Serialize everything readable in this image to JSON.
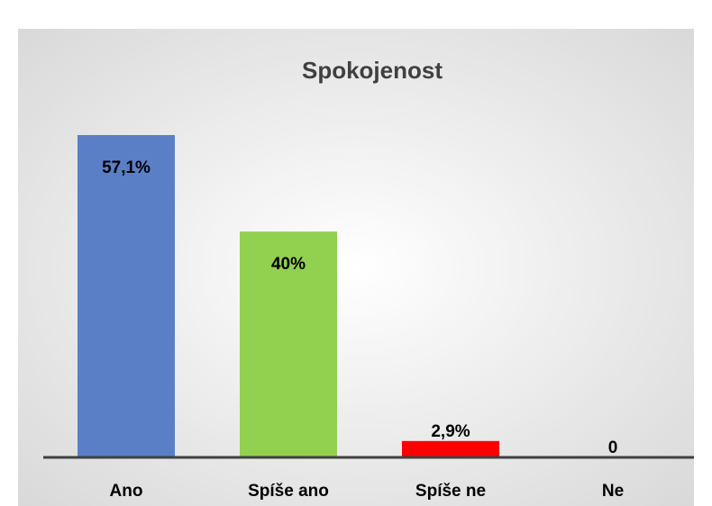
{
  "chart_data": {
    "type": "bar",
    "title": "Spokojenost",
    "categories": [
      "Ano",
      "Spíše ano",
      "Spíše ne",
      "Ne"
    ],
    "values": [
      57.1,
      40,
      2.9,
      0
    ],
    "value_labels": [
      "57,1%",
      "40%",
      "2,9%",
      "0"
    ],
    "colors": [
      "#5b7fc7",
      "#92d050",
      "#ff0000",
      "#7f7f7f"
    ],
    "grid": false
  }
}
